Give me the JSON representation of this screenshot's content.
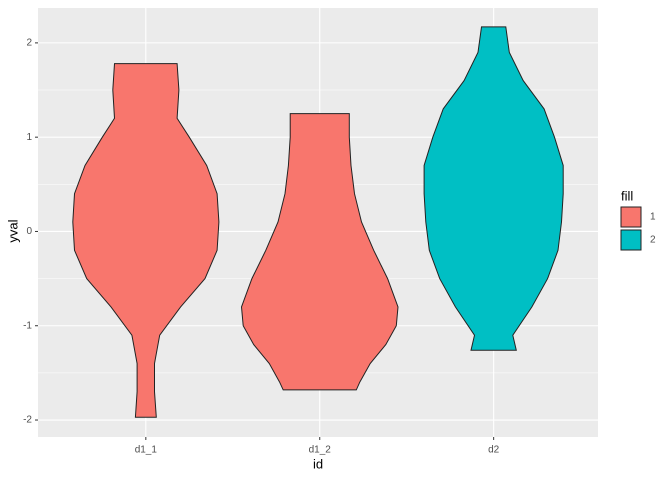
{
  "chart_data": {
    "type": "violin",
    "x_label": "id",
    "y_label": "yval",
    "categories": [
      "d1_1",
      "d1_2",
      "d2"
    ],
    "legend_title": "fill",
    "series": [
      {
        "name": "1",
        "color": "#F8766D"
      },
      {
        "name": "2",
        "color": "#00BFC4"
      }
    ],
    "violins": [
      {
        "category": "d1_1",
        "fill": "1",
        "y": [
          1.78,
          1.5,
          1.2,
          1.0,
          0.7,
          0.4,
          0.1,
          -0.2,
          -0.5,
          -0.8,
          -1.1,
          -1.4,
          -1.7,
          -1.97
        ],
        "width": [
          0.18,
          0.19,
          0.18,
          0.25,
          0.35,
          0.41,
          0.42,
          0.41,
          0.34,
          0.2,
          0.08,
          0.05,
          0.05,
          0.06
        ]
      },
      {
        "category": "d1_2",
        "fill": "1",
        "y": [
          1.25,
          1.0,
          0.7,
          0.4,
          0.1,
          -0.2,
          -0.5,
          -0.8,
          -1.0,
          -1.2,
          -1.4,
          -1.6,
          -1.68
        ],
        "width": [
          0.17,
          0.17,
          0.18,
          0.2,
          0.24,
          0.31,
          0.39,
          0.45,
          0.44,
          0.38,
          0.29,
          0.23,
          0.21
        ]
      },
      {
        "category": "d2",
        "fill": "2",
        "y": [
          2.17,
          1.9,
          1.6,
          1.3,
          1.0,
          0.7,
          0.4,
          0.1,
          -0.2,
          -0.5,
          -0.8,
          -1.1,
          -1.26
        ],
        "width": [
          0.07,
          0.09,
          0.17,
          0.29,
          0.35,
          0.4,
          0.4,
          0.39,
          0.37,
          0.31,
          0.22,
          0.11,
          0.13
        ]
      }
    ],
    "xlim": [
      0.38,
      3.6
    ],
    "ylim": [
      -2.18,
      2.37
    ],
    "yticks": [
      -2,
      -1,
      0,
      1,
      2
    ],
    "minor_yticks": [
      -1.5,
      -0.5,
      0.5,
      1.5
    ],
    "grid": true
  }
}
